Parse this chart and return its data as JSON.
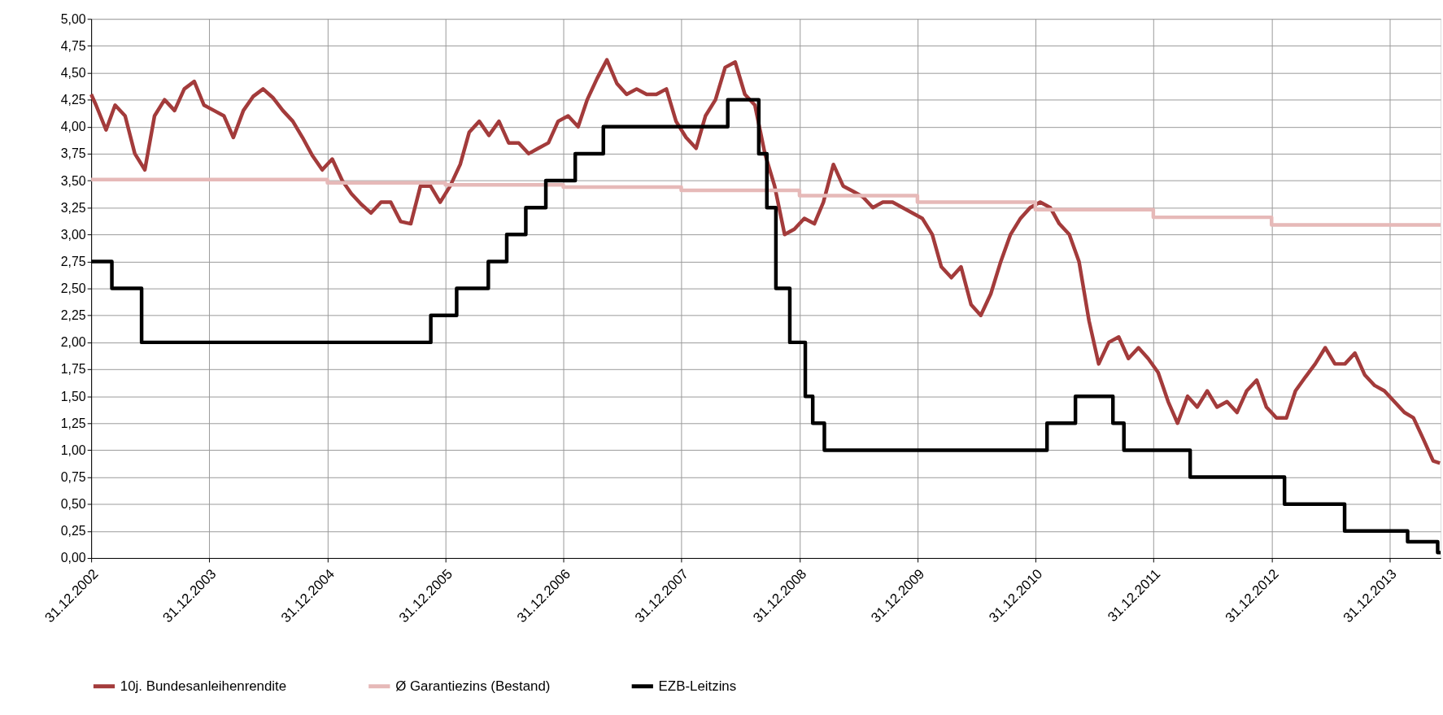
{
  "chart_data": {
    "type": "line",
    "xlim": [
      "2002-12-31",
      "2014-06-07"
    ],
    "xticks": [
      {
        "value": "2002-12-31",
        "label": "31.12.2002"
      },
      {
        "value": "2003-12-31",
        "label": "31.12.2003"
      },
      {
        "value": "2004-12-31",
        "label": "31.12.2004"
      },
      {
        "value": "2005-12-31",
        "label": "31.12.2005"
      },
      {
        "value": "2006-12-31",
        "label": "31.12.2006"
      },
      {
        "value": "2007-12-31",
        "label": "31.12.2007"
      },
      {
        "value": "2008-12-31",
        "label": "31.12.2008"
      },
      {
        "value": "2009-12-31",
        "label": "31.12.2009"
      },
      {
        "value": "2010-12-31",
        "label": "31.12.2010"
      },
      {
        "value": "2011-12-31",
        "label": "31.12.2011"
      },
      {
        "value": "2012-12-31",
        "label": "31.12.2012"
      },
      {
        "value": "2013-12-31",
        "label": "31.12.2013"
      }
    ],
    "ylim": [
      0,
      5
    ],
    "yticks": [
      {
        "value": 0,
        "label": "0,00"
      },
      {
        "value": 0.25,
        "label": "0,25"
      },
      {
        "value": 0.5,
        "label": "0,50"
      },
      {
        "value": 0.75,
        "label": "0,75"
      },
      {
        "value": 1,
        "label": "1,00"
      },
      {
        "value": 1.25,
        "label": "1,25"
      },
      {
        "value": 1.5,
        "label": "1,50"
      },
      {
        "value": 1.75,
        "label": "1,75"
      },
      {
        "value": 2,
        "label": "2,00"
      },
      {
        "value": 2.25,
        "label": "2,25"
      },
      {
        "value": 2.5,
        "label": "2,50"
      },
      {
        "value": 2.75,
        "label": "2,75"
      },
      {
        "value": 3,
        "label": "3,00"
      },
      {
        "value": 3.25,
        "label": "3,25"
      },
      {
        "value": 3.5,
        "label": "3,50"
      },
      {
        "value": 3.75,
        "label": "3,75"
      },
      {
        "value": 4,
        "label": "4,00"
      },
      {
        "value": 4.25,
        "label": "4,25"
      },
      {
        "value": 4.5,
        "label": "4,50"
      },
      {
        "value": 4.75,
        "label": "4,75"
      },
      {
        "value": 5,
        "label": "5,00"
      }
    ],
    "grid": true,
    "legend": "bottom",
    "marker": "none",
    "line_style": "solid",
    "series": [
      {
        "name": "10j. Bundesanleihenrendite",
        "color": "#a33b3b",
        "type": "line",
        "x": [
          "2002-12-31",
          "2003-01-15",
          "2003-02-15",
          "2003-03-15",
          "2003-04-15",
          "2003-05-15",
          "2003-06-15",
          "2003-07-15",
          "2003-08-15",
          "2003-09-15",
          "2003-10-15",
          "2003-11-15",
          "2003-12-15",
          "2004-01-15",
          "2004-02-15",
          "2004-03-15",
          "2004-04-15",
          "2004-05-15",
          "2004-06-15",
          "2004-07-15",
          "2004-08-15",
          "2004-09-15",
          "2004-10-15",
          "2004-11-15",
          "2004-12-15",
          "2005-01-15",
          "2005-02-15",
          "2005-03-15",
          "2005-04-15",
          "2005-05-15",
          "2005-06-15",
          "2005-07-15",
          "2005-08-15",
          "2005-09-15",
          "2005-10-15",
          "2005-11-15",
          "2005-12-15",
          "2006-01-15",
          "2006-02-15",
          "2006-03-15",
          "2006-04-15",
          "2006-05-15",
          "2006-06-15",
          "2006-07-15",
          "2006-08-15",
          "2006-09-15",
          "2006-10-15",
          "2006-11-15",
          "2006-12-15",
          "2007-01-15",
          "2007-02-15",
          "2007-03-15",
          "2007-04-15",
          "2007-05-15",
          "2007-06-15",
          "2007-07-15",
          "2007-08-15",
          "2007-09-15",
          "2007-10-15",
          "2007-11-15",
          "2007-12-15",
          "2008-01-15",
          "2008-02-15",
          "2008-03-15",
          "2008-04-15",
          "2008-05-15",
          "2008-06-15",
          "2008-07-15",
          "2008-08-15",
          "2008-09-15",
          "2008-10-15",
          "2008-11-15",
          "2008-12-15",
          "2009-01-15",
          "2009-02-15",
          "2009-03-15",
          "2009-04-15",
          "2009-05-15",
          "2009-06-15",
          "2009-07-15",
          "2009-08-15",
          "2009-09-15",
          "2009-10-15",
          "2009-11-15",
          "2009-12-15",
          "2010-01-15",
          "2010-02-15",
          "2010-03-15",
          "2010-04-15",
          "2010-05-15",
          "2010-06-15",
          "2010-07-15",
          "2010-08-15",
          "2010-09-15",
          "2010-10-15",
          "2010-11-15",
          "2010-12-15",
          "2011-01-15",
          "2011-02-15",
          "2011-03-15",
          "2011-04-15",
          "2011-05-15",
          "2011-06-15",
          "2011-07-15",
          "2011-08-15",
          "2011-09-15",
          "2011-10-15",
          "2011-11-15",
          "2011-12-15",
          "2012-01-15",
          "2012-02-15",
          "2012-03-15",
          "2012-04-15",
          "2012-05-15",
          "2012-06-15",
          "2012-07-15",
          "2012-08-15",
          "2012-09-15",
          "2012-10-15",
          "2012-11-15",
          "2012-12-15",
          "2013-01-15",
          "2013-02-15",
          "2013-03-15",
          "2013-04-15",
          "2013-05-15",
          "2013-06-15",
          "2013-07-15",
          "2013-08-15",
          "2013-09-15",
          "2013-10-15",
          "2013-11-15",
          "2013-12-15",
          "2014-01-15",
          "2014-02-15",
          "2014-03-15",
          "2014-04-15",
          "2014-05-15",
          "2014-06-05"
        ],
        "values": [
          4.3,
          4.2,
          3.97,
          4.2,
          4.1,
          3.75,
          3.6,
          4.1,
          4.25,
          4.15,
          4.35,
          4.42,
          4.2,
          4.15,
          4.1,
          3.9,
          4.15,
          4.28,
          4.35,
          4.27,
          4.15,
          4.05,
          3.9,
          3.73,
          3.6,
          3.7,
          3.5,
          3.38,
          3.28,
          3.2,
          3.3,
          3.3,
          3.12,
          3.1,
          3.45,
          3.45,
          3.3,
          3.45,
          3.65,
          3.95,
          4.05,
          3.92,
          4.05,
          3.85,
          3.85,
          3.75,
          3.8,
          3.85,
          4.05,
          4.1,
          4.0,
          4.25,
          4.45,
          4.62,
          4.4,
          4.3,
          4.35,
          4.3,
          4.3,
          4.35,
          4.05,
          3.9,
          3.8,
          4.1,
          4.25,
          4.55,
          4.6,
          4.3,
          4.2,
          3.75,
          3.45,
          3.0,
          3.05,
          3.15,
          3.1,
          3.3,
          3.65,
          3.45,
          3.4,
          3.35,
          3.25,
          3.3,
          3.3,
          3.25,
          3.2,
          3.15,
          3.0,
          2.7,
          2.6,
          2.7,
          2.35,
          2.25,
          2.45,
          2.75,
          3.0,
          3.15,
          3.25,
          3.3,
          3.25,
          3.1,
          3.0,
          2.75,
          2.2,
          1.8,
          2.0,
          2.05,
          1.85,
          1.95,
          1.85,
          1.72,
          1.45,
          1.25,
          1.5,
          1.4,
          1.55,
          1.4,
          1.45,
          1.35,
          1.55,
          1.65,
          1.4,
          1.3,
          1.3,
          1.55,
          1.68,
          1.8,
          1.95,
          1.8,
          1.8,
          1.9,
          1.7,
          1.6,
          1.55,
          1.45,
          1.35,
          1.3,
          1.1,
          0.9,
          0.88
        ]
      },
      {
        "name": "Ø Garantiezins (Bestand)",
        "color": "#e6b9b8",
        "type": "step",
        "x": [
          "2002-12-31",
          "2004-12-31",
          "2005-12-31",
          "2006-12-31",
          "2007-12-31",
          "2008-12-31",
          "2009-12-31",
          "2010-12-31",
          "2011-12-31",
          "2012-12-31",
          "2014-06-07"
        ],
        "values": [
          3.51,
          3.48,
          3.46,
          3.44,
          3.41,
          3.36,
          3.3,
          3.23,
          3.16,
          3.09,
          3.09
        ]
      },
      {
        "name": "EZB-Leitzins",
        "color": "#000000",
        "type": "step",
        "x": [
          "2002-12-31",
          "2003-03-05",
          "2003-06-05",
          "2005-11-16",
          "2006-02-04",
          "2006-05-13",
          "2006-07-09",
          "2006-09-06",
          "2006-11-07",
          "2007-02-06",
          "2007-05-04",
          "2008-05-23",
          "2008-08-27",
          "2008-09-21",
          "2008-10-19",
          "2008-12-01",
          "2009-01-18",
          "2009-02-10",
          "2009-03-18",
          "2011-02-05",
          "2011-05-04",
          "2011-08-28",
          "2011-10-01",
          "2012-04-23",
          "2013-02-09",
          "2013-08-14",
          "2014-02-25",
          "2014-05-29",
          "2014-06-07"
        ],
        "values": [
          2.75,
          2.5,
          2.0,
          2.25,
          2.5,
          2.75,
          3.0,
          3.25,
          3.5,
          3.75,
          4.0,
          4.25,
          3.75,
          3.25,
          2.5,
          2.0,
          1.5,
          1.25,
          1.0,
          1.25,
          1.5,
          1.25,
          1.0,
          0.75,
          0.5,
          0.25,
          0.15,
          0.05,
          0.05
        ]
      }
    ]
  }
}
